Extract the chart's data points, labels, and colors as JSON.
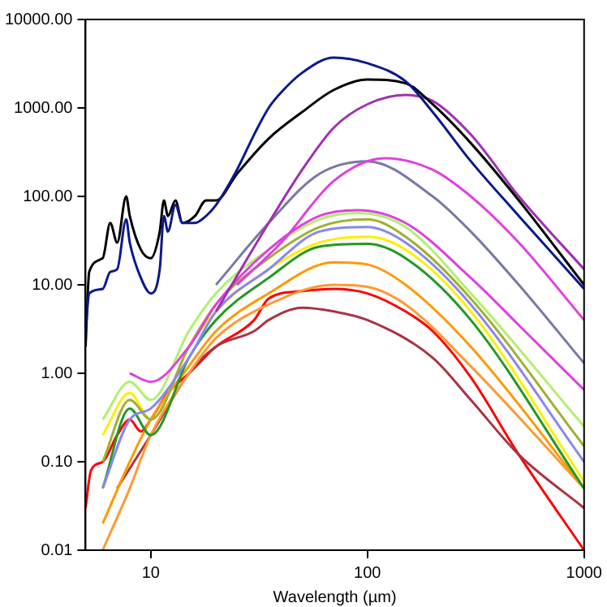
{
  "chart_data": {
    "type": "line",
    "xlabel": "Wavelength (µm)",
    "log": "xy",
    "xlim": [
      5,
      1000
    ],
    "ylim": [
      0.01,
      10000
    ],
    "xticks": [
      10,
      100,
      1000
    ],
    "yticks": [
      {
        "value": 0.01,
        "label": "0.01"
      },
      {
        "value": 0.1,
        "label": "0.10"
      },
      {
        "value": 1,
        "label": "1.00"
      },
      {
        "value": 10,
        "label": "10.00"
      },
      {
        "value": 100,
        "label": "100.00"
      },
      {
        "value": 1000,
        "label": "1000.00"
      },
      {
        "value": 10000,
        "label": "10000.00"
      }
    ],
    "grid": false,
    "legend": false,
    "marker": "none",
    "line_style": "solid",
    "series": [
      {
        "color": "#0a1a8c",
        "x": [
          5,
          5.2,
          6,
          6.5,
          7,
          7.7,
          8,
          9,
          10,
          11,
          11.5,
          12,
          13,
          14,
          16,
          18,
          20,
          25,
          30,
          35,
          40,
          50,
          70,
          100,
          150,
          200,
          300,
          500,
          1000
        ],
        "values": [
          3,
          8,
          9,
          14,
          15,
          55,
          30,
          12,
          8,
          15,
          60,
          40,
          80,
          50,
          50,
          60,
          80,
          200,
          500,
          1000,
          1500,
          2500,
          3700,
          3200,
          2000,
          900,
          250,
          60,
          9
        ]
      },
      {
        "color": "#000000",
        "x": [
          5,
          5.2,
          6,
          6.5,
          7,
          7.7,
          8,
          9,
          10,
          11,
          11.5,
          12,
          13,
          14,
          16,
          18,
          20,
          25,
          35,
          50,
          70,
          100,
          150,
          200,
          300,
          500,
          1000
        ],
        "values": [
          2,
          14,
          20,
          50,
          30,
          100,
          60,
          25,
          20,
          40,
          90,
          60,
          90,
          50,
          60,
          90,
          90,
          180,
          450,
          900,
          1600,
          2100,
          1900,
          1100,
          400,
          90,
          10
        ]
      },
      {
        "color": "#a030b0",
        "x": [
          20,
          35,
          50,
          70,
          100,
          150,
          200,
          300,
          500,
          1000
        ],
        "values": [
          5,
          50,
          200,
          600,
          1100,
          1400,
          1200,
          500,
          100,
          15
        ]
      },
      {
        "color": "#e040e0",
        "x": [
          25,
          40,
          70,
          120,
          200,
          300,
          500,
          1000
        ],
        "values": [
          10,
          30,
          150,
          270,
          200,
          100,
          30,
          4
        ]
      },
      {
        "color": "#7878a8",
        "x": [
          20,
          35,
          60,
          100,
          200,
          300,
          500,
          1000
        ],
        "values": [
          10,
          50,
          180,
          250,
          100,
          40,
          10,
          1.3
        ]
      },
      {
        "color": "#e040e0",
        "x": [
          8,
          10,
          15,
          20,
          35,
          60,
          90,
          150,
          300,
          500,
          1000
        ],
        "values": [
          1,
          0.8,
          2,
          6,
          25,
          60,
          70,
          50,
          12,
          3.5,
          0.65
        ]
      },
      {
        "color": "#b0f070",
        "x": [
          6,
          8,
          10,
          15,
          20,
          35,
          60,
          90,
          150,
          300,
          1000
        ],
        "values": [
          0.3,
          0.8,
          0.5,
          3,
          8,
          25,
          55,
          65,
          45,
          8,
          0.25
        ]
      },
      {
        "color": "#8888ee",
        "x": [
          6,
          8,
          10,
          15,
          20,
          35,
          60,
          100,
          150,
          300,
          1000
        ],
        "values": [
          0.05,
          0.3,
          0.4,
          1.5,
          5,
          15,
          40,
          45,
          30,
          6,
          0.1
        ]
      },
      {
        "color": "#a0b030",
        "x": [
          6,
          8,
          10,
          15,
          20,
          35,
          60,
          100,
          150,
          300,
          1000
        ],
        "values": [
          0.1,
          0.5,
          0.3,
          2,
          6,
          20,
          45,
          55,
          35,
          7,
          0.15
        ]
      },
      {
        "color": "#ffee00",
        "x": [
          6,
          8,
          10,
          15,
          20,
          35,
          60,
          100,
          150,
          300,
          1000
        ],
        "values": [
          0.2,
          0.6,
          0.3,
          2,
          5,
          15,
          30,
          35,
          25,
          5,
          0.06
        ]
      },
      {
        "color": "#229922",
        "x": [
          6,
          8,
          10,
          15,
          20,
          35,
          60,
          100,
          150,
          300,
          1000
        ],
        "values": [
          0.05,
          0.4,
          0.2,
          1.5,
          4,
          12,
          27,
          29,
          20,
          4,
          0.05
        ]
      },
      {
        "color": "#ff9900",
        "x": [
          6,
          8,
          10,
          15,
          20,
          35,
          70,
          100,
          150,
          300,
          1000
        ],
        "values": [
          0.02,
          0.1,
          0.3,
          1.2,
          3,
          8,
          18,
          17,
          10,
          2,
          0.05
        ]
      },
      {
        "color": "#ff9933",
        "x": [
          6,
          8,
          10,
          15,
          20,
          35,
          70,
          100,
          150,
          300,
          1000
        ],
        "values": [
          0.01,
          0.05,
          0.2,
          1,
          2.5,
          6,
          10,
          9.5,
          6,
          1.2,
          0.05
        ]
      },
      {
        "color": "#aa3344",
        "x": [
          7,
          10,
          15,
          20,
          30,
          35,
          50,
          70,
          100,
          200,
          300,
          500,
          1000
        ],
        "values": [
          0.05,
          0.2,
          1,
          2,
          3,
          4,
          5.5,
          5,
          4,
          1.5,
          0.5,
          0.12,
          0.03
        ]
      },
      {
        "color": "#ff0000",
        "x": [
          5,
          5.3,
          6,
          7,
          8,
          9,
          10,
          12,
          15,
          20,
          30,
          35,
          50,
          70,
          100,
          150,
          200,
          300,
          500,
          1000
        ],
        "values": [
          0.03,
          0.08,
          0.1,
          0.2,
          0.3,
          0.22,
          0.3,
          0.6,
          1,
          2,
          4,
          7,
          8.5,
          9,
          8,
          5,
          3,
          0.9,
          0.12,
          0.01
        ]
      }
    ]
  }
}
